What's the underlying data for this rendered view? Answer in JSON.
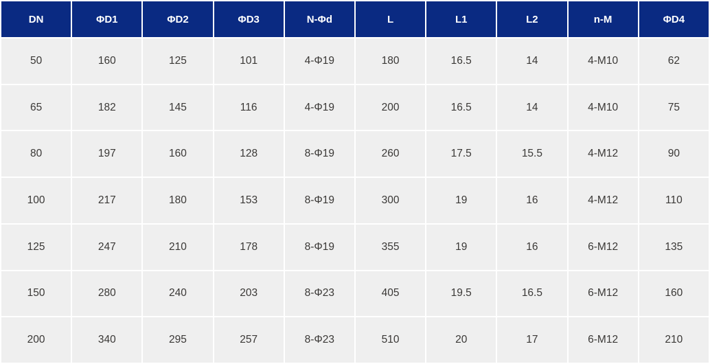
{
  "colors": {
    "header_bg": "#0a2a82",
    "header_text": "#ffffff",
    "cell_bg": "#efefef",
    "cell_text": "#3a3836",
    "grid_line": "#ffffff"
  },
  "chart_data": {
    "type": "table",
    "title": "",
    "columns": [
      "DN",
      "ΦD1",
      "ΦD2",
      "ΦD3",
      "N-Φd",
      "L",
      "L1",
      "L2",
      "n-M",
      "ΦD4"
    ],
    "rows": [
      [
        "50",
        "160",
        "125",
        "101",
        "4-Φ19",
        "180",
        "16.5",
        "14",
        "4-M10",
        "62"
      ],
      [
        "65",
        "182",
        "145",
        "116",
        "4-Φ19",
        "200",
        "16.5",
        "14",
        "4-M10",
        "75"
      ],
      [
        "80",
        "197",
        "160",
        "128",
        "8-Φ19",
        "260",
        "17.5",
        "15.5",
        "4-M12",
        "90"
      ],
      [
        "100",
        "217",
        "180",
        "153",
        "8-Φ19",
        "300",
        "19",
        "16",
        "4-M12",
        "110"
      ],
      [
        "125",
        "247",
        "210",
        "178",
        "8-Φ19",
        "355",
        "19",
        "16",
        "6-M12",
        "135"
      ],
      [
        "150",
        "280",
        "240",
        "203",
        "8-Φ23",
        "405",
        "19.5",
        "16.5",
        "6-M12",
        "160"
      ],
      [
        "200",
        "340",
        "295",
        "257",
        "8-Φ23",
        "510",
        "20",
        "17",
        "6-M12",
        "210"
      ]
    ]
  }
}
